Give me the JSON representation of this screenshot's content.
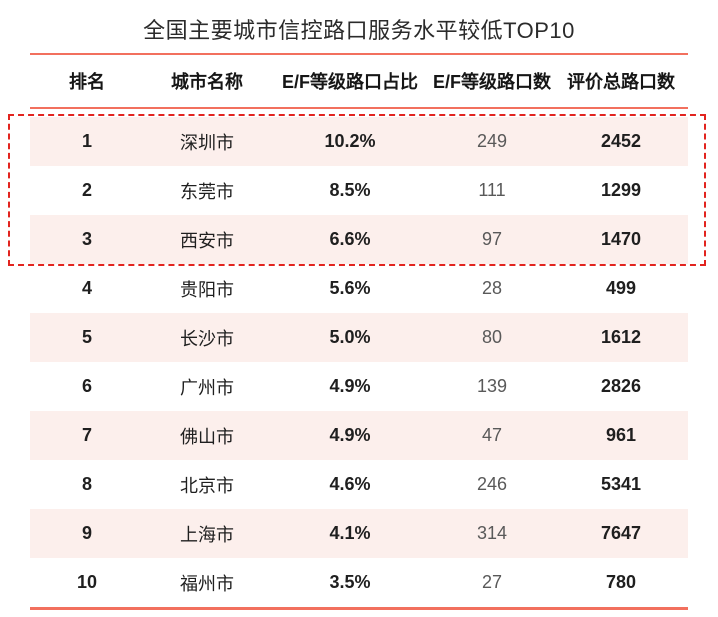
{
  "title": "全国主要城市信控路口服务水平较低TOP10",
  "chart_data": {
    "type": "table",
    "title": "全国主要城市信控路口服务水平较低TOP10",
    "columns": [
      {
        "key": "rank",
        "label": "排名"
      },
      {
        "key": "city",
        "label": "城市名称"
      },
      {
        "key": "pct",
        "label": "E/F等级路口占比"
      },
      {
        "key": "count",
        "label": "E/F等级路口数"
      },
      {
        "key": "total",
        "label": "评价总路口数"
      }
    ],
    "rows": [
      {
        "rank": "1",
        "city": "深圳市",
        "pct": "10.2%",
        "count": "249",
        "total": "2452"
      },
      {
        "rank": "2",
        "city": "东莞市",
        "pct": "8.5%",
        "count": "111",
        "total": "1299"
      },
      {
        "rank": "3",
        "city": "西安市",
        "pct": "6.6%",
        "count": "97",
        "total": "1470"
      },
      {
        "rank": "4",
        "city": "贵阳市",
        "pct": "5.6%",
        "count": "28",
        "total": "499"
      },
      {
        "rank": "5",
        "city": "长沙市",
        "pct": "5.0%",
        "count": "80",
        "total": "1612"
      },
      {
        "rank": "6",
        "city": "广州市",
        "pct": "4.9%",
        "count": "139",
        "total": "2826"
      },
      {
        "rank": "7",
        "city": "佛山市",
        "pct": "4.9%",
        "count": "47",
        "total": "961"
      },
      {
        "rank": "8",
        "city": "北京市",
        "pct": "4.6%",
        "count": "246",
        "total": "5341"
      },
      {
        "rank": "9",
        "city": "上海市",
        "pct": "4.1%",
        "count": "314",
        "total": "7647"
      },
      {
        "rank": "10",
        "city": "福州市",
        "pct": "3.5%",
        "count": "27",
        "total": "780"
      }
    ],
    "highlighted_top_rows": 3,
    "layout": {
      "stripe_pattern": "odd-rows-shaded",
      "grid": "off",
      "alignment": "center"
    }
  },
  "colors": {
    "accent_line": "#f2705e",
    "highlight_border": "#e2241f",
    "row_stripe_bg": "#fcefec",
    "text_primary": "#1f1f1f",
    "text_secondary": "#595959"
  }
}
